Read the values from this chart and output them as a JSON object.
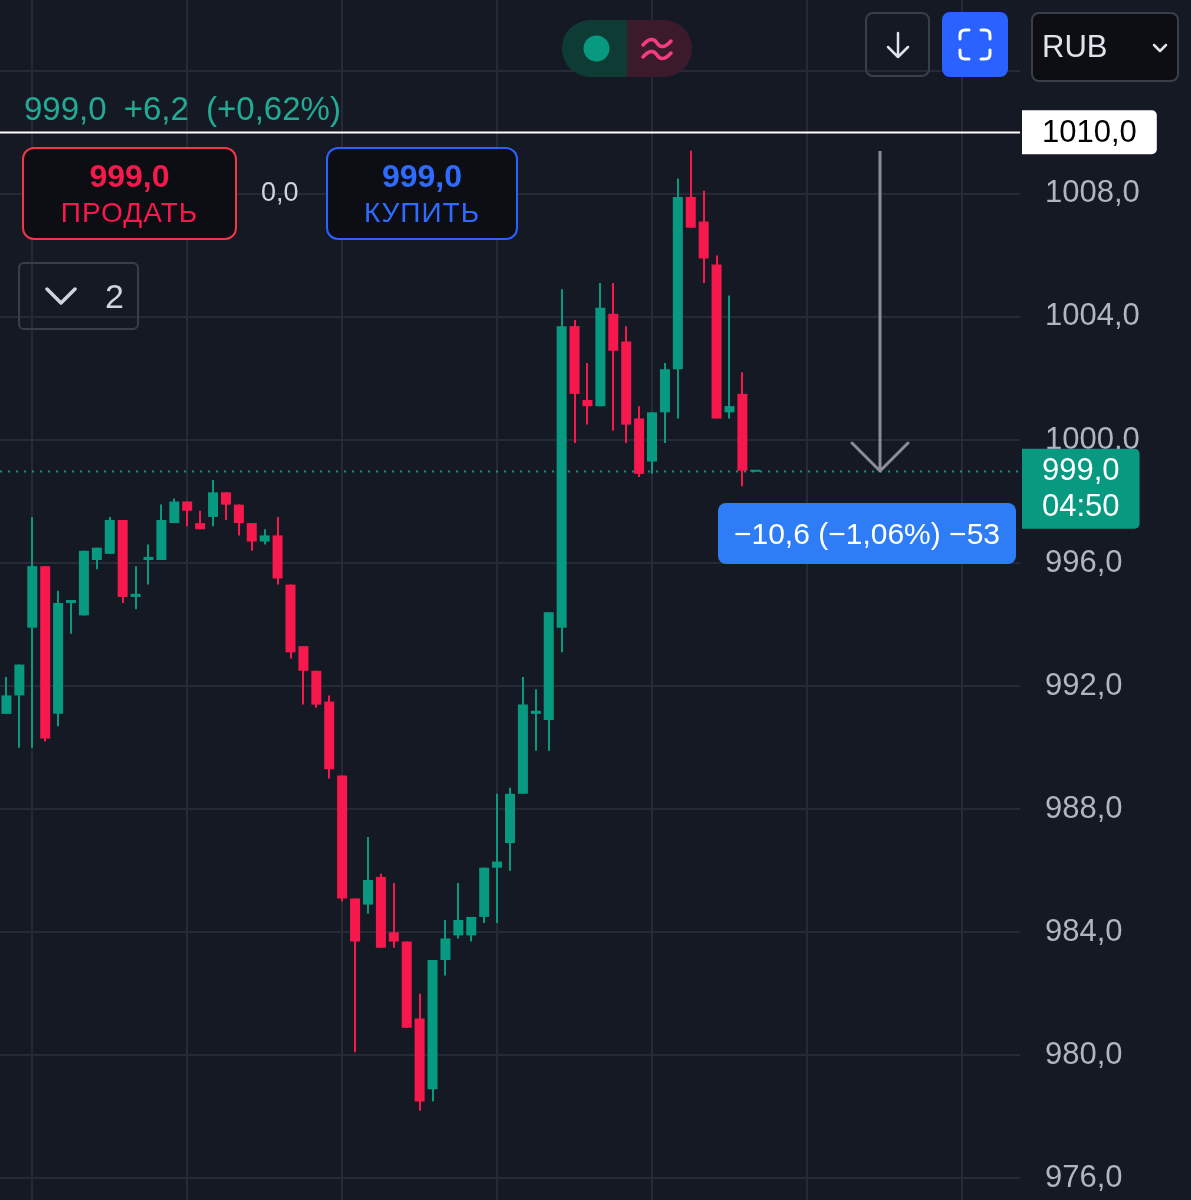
{
  "chart_data": {
    "type": "candlestick",
    "categories": [
      null,
      null,
      null,
      null,
      null,
      null,
      null,
      null,
      null,
      null,
      null,
      null,
      null,
      null,
      null,
      null,
      null,
      null,
      null,
      null,
      null,
      null,
      null,
      null,
      null,
      null,
      null,
      null,
      null,
      null,
      null,
      null,
      null,
      null,
      null,
      null,
      null,
      null,
      null,
      null,
      null,
      null,
      null,
      null,
      null,
      null,
      null,
      null,
      null,
      null,
      null,
      null,
      null,
      null,
      null,
      null,
      null,
      null,
      null,
      null,
      null,
      null,
      null,
      null,
      null,
      null,
      null,
      null,
      null,
      null,
      null,
      null,
      null,
      null,
      null,
      null,
      null,
      null,
      null
    ],
    "ohlc": [
      [
        991.1,
        992.3,
        991.1,
        991.7
      ],
      [
        991.7,
        992.7,
        990.0,
        992.7
      ],
      [
        993.9,
        997.5,
        990.0,
        995.9
      ],
      [
        995.9,
        995.9,
        990.2,
        990.3
      ],
      [
        991.1,
        995.1,
        990.7,
        994.7
      ],
      [
        994.7,
        994.8,
        993.7,
        994.8
      ],
      [
        994.3,
        996.4,
        994.3,
        996.4
      ],
      [
        996.1,
        996.5,
        995.8,
        996.5
      ],
      [
        996.3,
        997.5,
        996.3,
        997.4
      ],
      [
        997.4,
        997.4,
        994.7,
        994.9
      ],
      [
        994.9,
        995.9,
        994.5,
        995.0
      ],
      [
        996.1,
        996.6,
        995.3,
        996.2
      ],
      [
        996.1,
        997.9,
        996.1,
        997.4
      ],
      [
        997.3,
        998.1,
        997.3,
        998.0
      ],
      [
        998.0,
        998.0,
        997.2,
        997.7
      ],
      [
        997.3,
        997.7,
        997.1,
        997.1
      ],
      [
        997.5,
        998.7,
        997.2,
        998.3
      ],
      [
        998.3,
        998.3,
        997.4,
        997.9
      ],
      [
        997.9,
        997.9,
        996.9,
        997.3
      ],
      [
        997.3,
        997.3,
        996.4,
        996.7
      ],
      [
        996.7,
        997.1,
        996.6,
        996.9
      ],
      [
        996.9,
        997.5,
        995.3,
        995.5
      ],
      [
        995.3,
        995.3,
        992.9,
        993.1
      ],
      [
        993.3,
        993.3,
        991.4,
        992.5
      ],
      [
        992.5,
        992.5,
        991.3,
        991.4
      ],
      [
        991.5,
        991.7,
        989.0,
        989.3
      ],
      [
        989.1,
        989.1,
        985.0,
        985.1
      ],
      [
        985.1,
        985.1,
        980.1,
        983.7
      ],
      [
        984.9,
        987.1,
        984.6,
        985.7
      ],
      [
        985.8,
        985.9,
        983.5,
        983.5
      ],
      [
        984.0,
        985.6,
        983.5,
        983.7
      ],
      [
        983.7,
        983.7,
        980.9,
        980.9
      ],
      [
        981.2,
        982.0,
        978.2,
        978.5
      ],
      [
        978.9,
        983.1,
        978.5,
        983.1
      ],
      [
        983.1,
        984.4,
        982.6,
        983.8
      ],
      [
        983.9,
        985.6,
        983.8,
        984.4
      ],
      [
        983.9,
        984.5,
        983.7,
        984.5
      ],
      [
        984.5,
        986.1,
        984.3,
        986.1
      ],
      [
        986.1,
        988.5,
        984.3,
        986.3
      ],
      [
        986.9,
        988.7,
        986.0,
        988.5
      ],
      [
        988.5,
        992.3,
        988.5,
        991.4
      ],
      [
        991.1,
        991.9,
        989.9,
        991.2
      ],
      [
        990.9,
        994.4,
        989.9,
        994.4
      ],
      [
        993.9,
        1004.9,
        993.1,
        1003.7
      ],
      [
        1003.7,
        1003.9,
        999.9,
        1001.5
      ],
      [
        1001.3,
        1002.5,
        1000.5,
        1001.1
      ],
      [
        1001.1,
        1005.1,
        1001.1,
        1004.3
      ],
      [
        1004.1,
        1005.1,
        1000.3,
        1002.9
      ],
      [
        1003.2,
        1003.7,
        999.9,
        1000.5
      ],
      [
        1000.7,
        1001.1,
        998.8,
        998.9
      ],
      [
        999.3,
        1000.9,
        998.9,
        1000.9
      ],
      [
        1000.9,
        1002.5,
        999.9,
        1002.3
      ],
      [
        1002.3,
        1008.5,
        1000.7,
        1007.9
      ],
      [
        1007.9,
        1009.4,
        1006.9,
        1006.9
      ],
      [
        1007.1,
        1008.1,
        1005.1,
        1005.9
      ],
      [
        1005.7,
        1006.0,
        1000.7,
        1000.7
      ],
      [
        1000.9,
        1004.7,
        1000.7,
        1001.1
      ],
      [
        1001.5,
        1002.2,
        998.5,
        999.0
      ],
      [
        999.0,
        999.0,
        999.0,
        999.0
      ],
      null,
      null,
      null,
      null,
      null,
      null,
      null,
      null,
      null,
      null,
      null,
      null,
      null,
      null,
      null,
      null,
      null,
      null,
      null,
      null
    ],
    "colors": [
      "#089981",
      "#089981",
      "#089981",
      "#f7194d",
      "#089981",
      "#089981",
      "#089981",
      "#089981",
      "#089981",
      "#f7194d",
      "#089981",
      "#089981",
      "#089981",
      "#089981",
      "#f7194d",
      "#f7194d",
      "#089981",
      "#f7194d",
      "#f7194d",
      "#f7194d",
      "#089981",
      "#f7194d",
      "#f7194d",
      "#f7194d",
      "#f7194d",
      "#f7194d",
      "#f7194d",
      "#f7194d",
      "#089981",
      "#f7194d",
      "#f7194d",
      "#f7194d",
      "#f7194d",
      "#089981",
      "#089981",
      "#089981",
      "#089981",
      "#089981",
      "#089981",
      "#089981",
      "#089981",
      "#089981",
      "#089981",
      "#089981",
      "#f7194d",
      "#f7194d",
      "#089981",
      "#f7194d",
      "#f7194d",
      "#f7194d",
      "#089981",
      "#089981",
      "#089981",
      "#f7194d",
      "#f7194d",
      "#f7194d",
      "#089981",
      "#f7194d",
      "#089981",
      null,
      null,
      null,
      null,
      null,
      null,
      null,
      null,
      null,
      null,
      null,
      null,
      null,
      null,
      null,
      null,
      null,
      null,
      null,
      null
    ],
    "ylim": [
      975.3,
      1014.3
    ],
    "yticks": [
      {
        "value": 976,
        "label": "976,0"
      },
      {
        "value": 980,
        "label": "980,0"
      },
      {
        "value": 984,
        "label": "984,0"
      },
      {
        "value": 988,
        "label": "988,0"
      },
      {
        "value": 992,
        "label": "992,0"
      },
      {
        "value": 996,
        "label": "996,0"
      },
      {
        "value": 1000,
        "label": "1000,0"
      },
      {
        "value": 1004,
        "label": "1004,0"
      },
      {
        "value": 1008,
        "label": "1008,0"
      },
      {
        "value": 1012,
        "label": null
      }
    ],
    "grid": true,
    "tick_labels": "y",
    "ref_lines": [
      {
        "axis": "y",
        "value": 1010,
        "label": "1010,0",
        "color": "#ffffff",
        "line_style": "solid"
      },
      {
        "axis": "y",
        "value": 999,
        "label": "999,0\n04:50",
        "color": "#089981",
        "line_style": "dotted"
      }
    ],
    "annotations": [
      "999,0 +6,2 (+0,62%)",
      "999,0",
      "ПРОДАТЬ",
      "0,0",
      "999,0",
      "КУПИТЬ",
      "2",
      "RUB",
      "−10,6 (−1,06%) −53"
    ]
  }
}
